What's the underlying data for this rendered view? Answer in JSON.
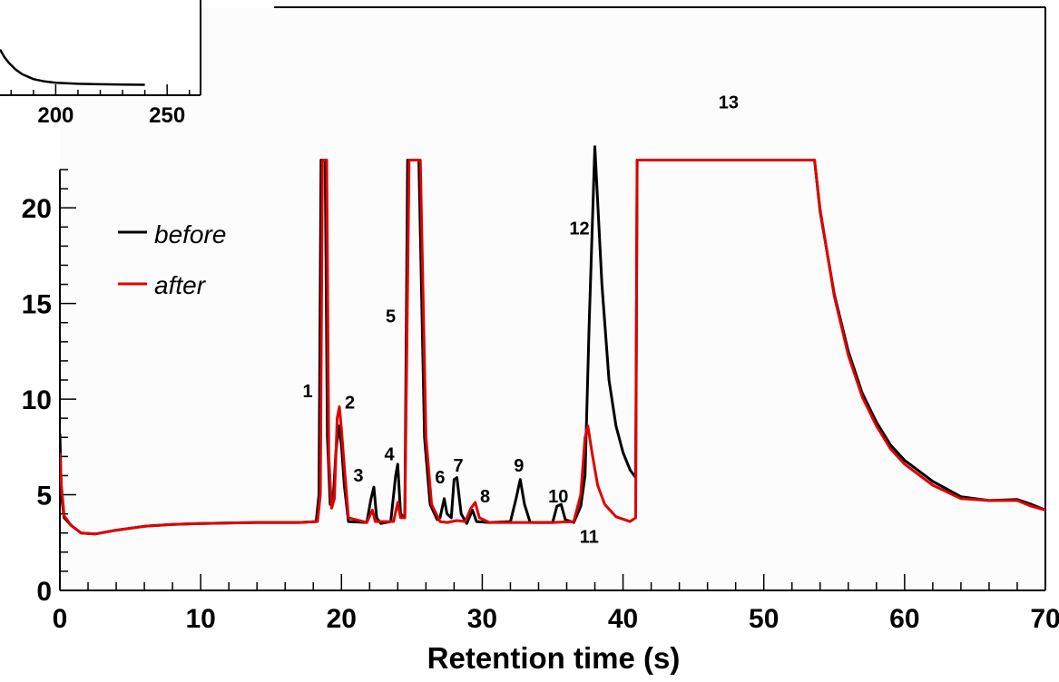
{
  "chart_data": [
    {
      "type": "line",
      "role": "main",
      "title": "",
      "xlabel": "Retention time (s)",
      "ylabel": "",
      "xlim": [
        0,
        70
      ],
      "ylim": [
        0,
        22
      ],
      "y_clipped_above": 22,
      "xticks": [
        0,
        10,
        20,
        30,
        40,
        50,
        60,
        70
      ],
      "xtick_labels": [
        "0",
        "10",
        "20",
        "30",
        "40",
        "50",
        "60",
        "70"
      ],
      "yticks": [
        0,
        5,
        10,
        15,
        20
      ],
      "ytick_labels": [
        "0",
        "5",
        "10",
        "15",
        "20"
      ],
      "grid": false,
      "legend_position": "top-left",
      "colors": {
        "before": "#000000",
        "after": "#e00000"
      },
      "series": [
        {
          "name": "before",
          "color": "#000000",
          "points": [
            [
              0.0,
              8.2
            ],
            [
              0.1,
              5.0
            ],
            [
              0.3,
              3.8
            ],
            [
              0.8,
              3.4
            ],
            [
              1.5,
              3.0
            ],
            [
              2.5,
              2.95
            ],
            [
              4.0,
              3.15
            ],
            [
              6.0,
              3.35
            ],
            [
              8.0,
              3.45
            ],
            [
              10.0,
              3.5
            ],
            [
              14.0,
              3.55
            ],
            [
              17.0,
              3.55
            ],
            [
              18.2,
              3.6
            ],
            [
              18.4,
              5.0
            ],
            [
              18.55,
              22.5
            ],
            [
              18.85,
              22.5
            ],
            [
              19.0,
              8.0
            ],
            [
              19.2,
              4.5
            ],
            [
              19.4,
              4.6
            ],
            [
              19.6,
              7.2
            ],
            [
              19.8,
              8.6
            ],
            [
              20.0,
              7.6
            ],
            [
              20.2,
              5.5
            ],
            [
              20.5,
              3.6
            ],
            [
              21.8,
              3.55
            ],
            [
              22.1,
              4.8
            ],
            [
              22.3,
              5.4
            ],
            [
              22.5,
              3.8
            ],
            [
              22.8,
              3.5
            ],
            [
              23.5,
              3.6
            ],
            [
              23.85,
              6.0
            ],
            [
              24.0,
              6.6
            ],
            [
              24.2,
              4.0
            ],
            [
              24.5,
              3.8
            ],
            [
              24.7,
              22.5
            ],
            [
              25.5,
              22.5
            ],
            [
              25.9,
              8.0
            ],
            [
              26.3,
              4.5
            ],
            [
              26.8,
              3.7
            ],
            [
              27.0,
              3.8
            ],
            [
              27.3,
              4.8
            ],
            [
              27.5,
              4.0
            ],
            [
              27.8,
              3.8
            ],
            [
              28.0,
              5.8
            ],
            [
              28.2,
              5.9
            ],
            [
              28.5,
              4.0
            ],
            [
              28.9,
              3.5
            ],
            [
              29.3,
              4.2
            ],
            [
              29.6,
              3.6
            ],
            [
              30.5,
              3.55
            ],
            [
              32.0,
              3.6
            ],
            [
              32.4,
              4.8
            ],
            [
              32.7,
              5.8
            ],
            [
              33.0,
              4.5
            ],
            [
              33.4,
              3.55
            ],
            [
              35.0,
              3.55
            ],
            [
              35.3,
              4.4
            ],
            [
              35.6,
              4.5
            ],
            [
              35.9,
              3.7
            ],
            [
              36.5,
              3.55
            ],
            [
              37.0,
              4.4
            ],
            [
              37.3,
              6.0
            ],
            [
              37.6,
              14.0
            ],
            [
              38.0,
              23.2
            ],
            [
              38.5,
              16.0
            ],
            [
              39.0,
              11.0
            ],
            [
              39.5,
              8.6
            ],
            [
              40.0,
              7.2
            ],
            [
              40.5,
              6.3
            ],
            [
              40.9,
              5.9
            ],
            [
              41.0,
              22.5
            ],
            [
              53.6,
              22.5
            ],
            [
              54.0,
              19.8
            ],
            [
              55.0,
              15.5
            ],
            [
              56.0,
              12.5
            ],
            [
              57.0,
              10.3
            ],
            [
              58.0,
              8.8
            ],
            [
              59.0,
              7.6
            ],
            [
              60.0,
              6.8
            ],
            [
              62.0,
              5.7
            ],
            [
              64.0,
              4.9
            ],
            [
              66.0,
              4.7
            ],
            [
              68.0,
              4.75
            ],
            [
              69.0,
              4.5
            ],
            [
              70.0,
              4.2
            ]
          ]
        },
        {
          "name": "after",
          "color": "#e00000",
          "points": [
            [
              0.0,
              7.2
            ],
            [
              0.1,
              5.5
            ],
            [
              0.3,
              3.9
            ],
            [
              0.8,
              3.4
            ],
            [
              1.5,
              3.0
            ],
            [
              2.5,
              2.95
            ],
            [
              4.0,
              3.15
            ],
            [
              6.0,
              3.35
            ],
            [
              8.0,
              3.45
            ],
            [
              10.0,
              3.5
            ],
            [
              14.0,
              3.55
            ],
            [
              17.0,
              3.55
            ],
            [
              18.3,
              3.6
            ],
            [
              18.5,
              5.0
            ],
            [
              18.65,
              22.5
            ],
            [
              18.95,
              22.5
            ],
            [
              19.1,
              7.0
            ],
            [
              19.3,
              4.3
            ],
            [
              19.5,
              4.8
            ],
            [
              19.7,
              9.0
            ],
            [
              19.85,
              9.6
            ],
            [
              20.0,
              8.4
            ],
            [
              20.2,
              6.5
            ],
            [
              20.5,
              3.8
            ],
            [
              21.8,
              3.55
            ],
            [
              22.2,
              4.2
            ],
            [
              22.4,
              3.6
            ],
            [
              23.7,
              3.6
            ],
            [
              24.0,
              4.6
            ],
            [
              24.2,
              3.8
            ],
            [
              24.5,
              3.8
            ],
            [
              24.8,
              22.5
            ],
            [
              25.6,
              22.5
            ],
            [
              26.0,
              8.0
            ],
            [
              26.4,
              4.5
            ],
            [
              27.0,
              3.6
            ],
            [
              27.5,
              3.55
            ],
            [
              28.2,
              3.65
            ],
            [
              28.8,
              3.6
            ],
            [
              29.2,
              4.3
            ],
            [
              29.5,
              4.6
            ],
            [
              29.8,
              3.8
            ],
            [
              30.5,
              3.55
            ],
            [
              35.0,
              3.55
            ],
            [
              36.5,
              3.6
            ],
            [
              37.0,
              5.0
            ],
            [
              37.3,
              8.0
            ],
            [
              37.5,
              8.6
            ],
            [
              37.8,
              7.2
            ],
            [
              38.2,
              5.5
            ],
            [
              38.7,
              4.5
            ],
            [
              39.5,
              3.85
            ],
            [
              40.5,
              3.6
            ],
            [
              40.9,
              3.8
            ],
            [
              41.0,
              22.5
            ],
            [
              53.6,
              22.5
            ],
            [
              54.0,
              19.9
            ],
            [
              55.0,
              15.4
            ],
            [
              56.0,
              12.3
            ],
            [
              57.0,
              10.1
            ],
            [
              58.0,
              8.6
            ],
            [
              59.0,
              7.4
            ],
            [
              60.0,
              6.6
            ],
            [
              62.0,
              5.5
            ],
            [
              64.0,
              4.8
            ],
            [
              66.0,
              4.7
            ],
            [
              68.0,
              4.7
            ],
            [
              69.0,
              4.4
            ],
            [
              70.0,
              4.2
            ]
          ]
        }
      ],
      "annotations": [
        {
          "text": "1",
          "x": 17.6,
          "y": 10.1
        },
        {
          "text": "2",
          "x": 20.6,
          "y": 9.5
        },
        {
          "text": "3",
          "x": 21.2,
          "y": 5.7
        },
        {
          "text": "4",
          "x": 23.4,
          "y": 6.8
        },
        {
          "text": "5",
          "x": 23.5,
          "y": 14.0
        },
        {
          "text": "6",
          "x": 27.0,
          "y": 5.6
        },
        {
          "text": "7",
          "x": 28.3,
          "y": 6.2
        },
        {
          "text": "8",
          "x": 30.2,
          "y": 4.6
        },
        {
          "text": "9",
          "x": 32.6,
          "y": 6.2
        },
        {
          "text": "10",
          "x": 35.4,
          "y": 4.6
        },
        {
          "text": "11",
          "x": 37.6,
          "y": 2.5
        },
        {
          "text": "12",
          "x": 36.9,
          "y": 18.6
        },
        {
          "text": "13",
          "x": 47.5,
          "y": 25.2
        }
      ]
    },
    {
      "type": "line",
      "role": "inset",
      "title": "",
      "xlabel": "",
      "ylabel": "",
      "xlim": [
        175,
        265
      ],
      "xticks": [
        200,
        250
      ],
      "xtick_labels": [
        "200",
        "250"
      ],
      "grid": false,
      "series": [
        {
          "color": "#000000",
          "points": [
            [
              175,
              0.48
            ],
            [
              177,
              0.4
            ],
            [
              179,
              0.34
            ],
            [
              182,
              0.27
            ],
            [
              185,
              0.22
            ],
            [
              190,
              0.17
            ],
            [
              195,
              0.145
            ],
            [
              200,
              0.13
            ],
            [
              210,
              0.12
            ],
            [
              220,
              0.115
            ],
            [
              230,
              0.112
            ],
            [
              240,
              0.11
            ]
          ]
        }
      ]
    }
  ]
}
